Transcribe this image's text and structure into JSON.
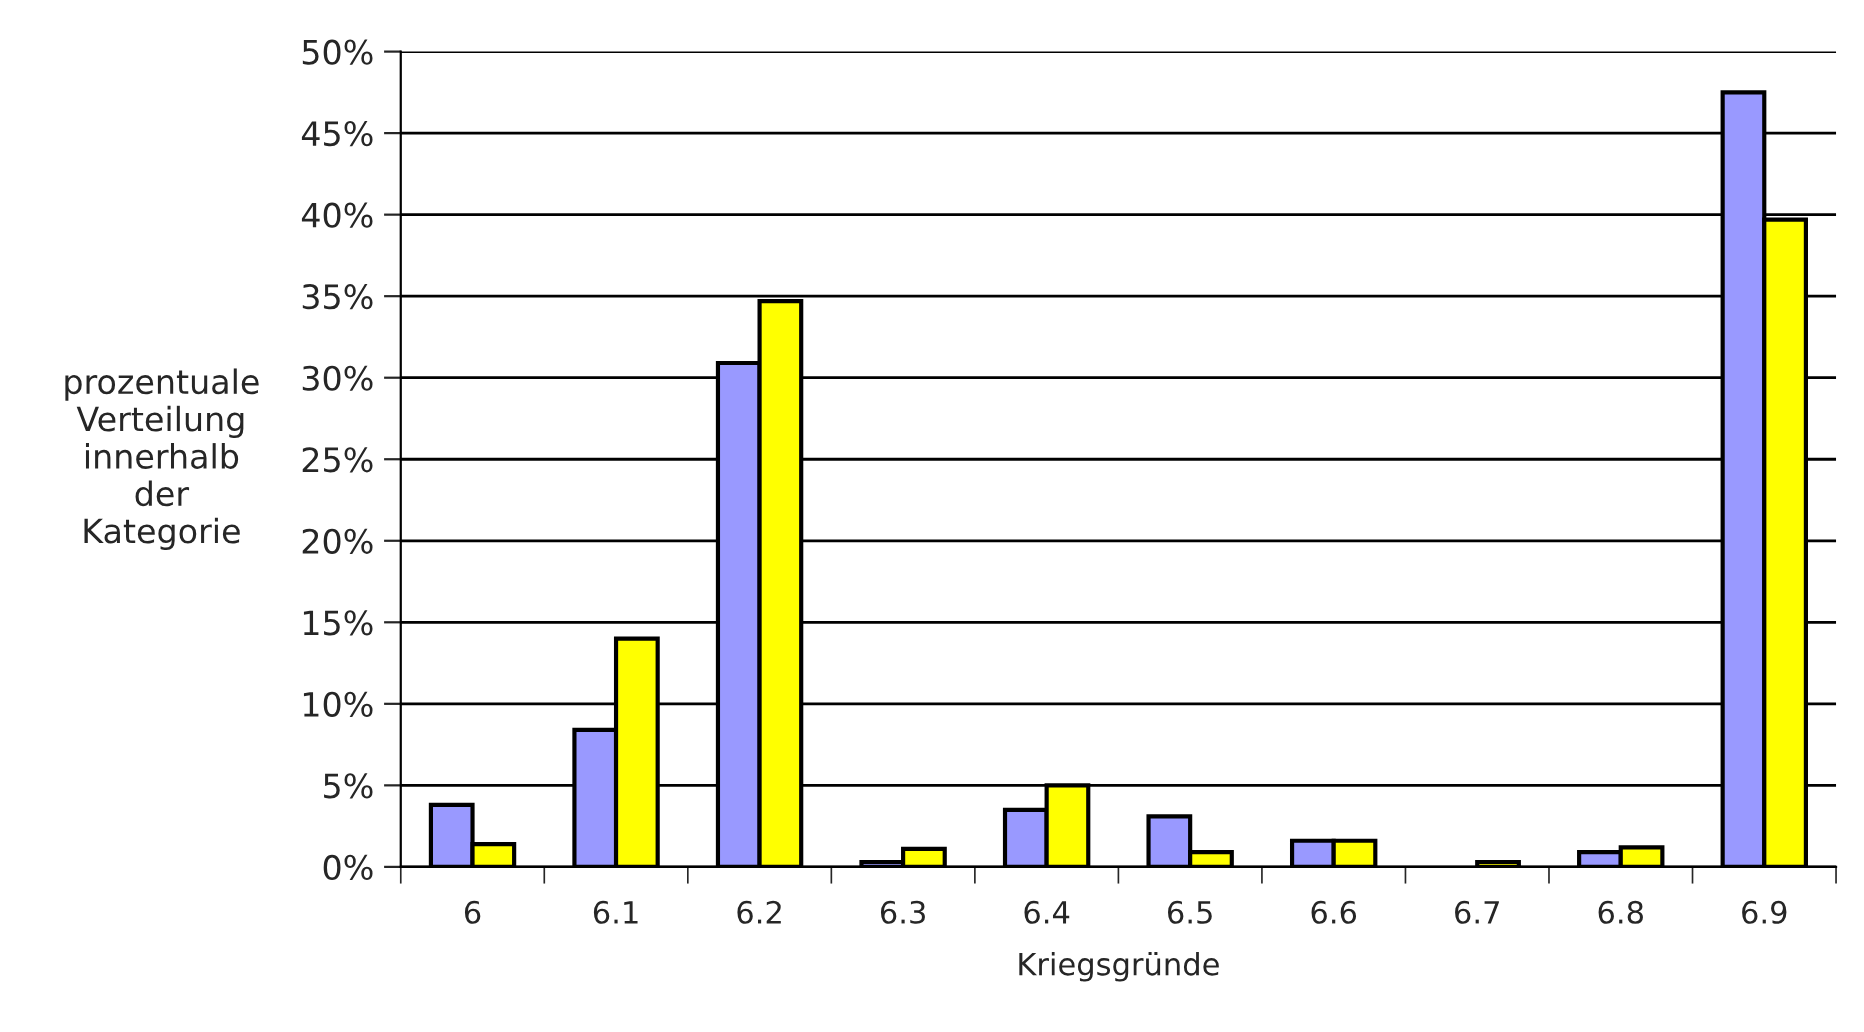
{
  "chart_data": {
    "type": "bar",
    "xlabel": "Kriegsgründe",
    "ylabel": "prozentuale\nVerteilung\ninnerhalb\nder\nKategorie",
    "categories": [
      "6",
      "6.1",
      "6.2",
      "6.3",
      "6.4",
      "6.5",
      "6.6",
      "6.7",
      "6.8",
      "6.9"
    ],
    "series": [
      {
        "color": "#9999ff",
        "values": [
          3.8,
          8.4,
          30.9,
          0.3,
          3.5,
          3.1,
          1.6,
          null,
          0.9,
          47.5
        ]
      },
      {
        "color": "#ffff00",
        "values": [
          1.4,
          14.0,
          34.7,
          1.1,
          5.0,
          0.9,
          1.6,
          0.3,
          1.2,
          39.7
        ]
      }
    ],
    "ylim": [
      0,
      50
    ],
    "yticks": [
      {
        "value": 0,
        "label": "0%"
      },
      {
        "value": 5,
        "label": "5%"
      },
      {
        "value": 10,
        "label": "10%"
      },
      {
        "value": 15,
        "label": "15%"
      },
      {
        "value": 20,
        "label": "20%"
      },
      {
        "value": 25,
        "label": "25%"
      },
      {
        "value": 30,
        "label": "30%"
      },
      {
        "value": 35,
        "label": "35%"
      },
      {
        "value": 40,
        "label": "40%"
      },
      {
        "value": 45,
        "label": "45%"
      },
      {
        "value": 50,
        "label": "50%"
      }
    ],
    "grid": "y"
  }
}
